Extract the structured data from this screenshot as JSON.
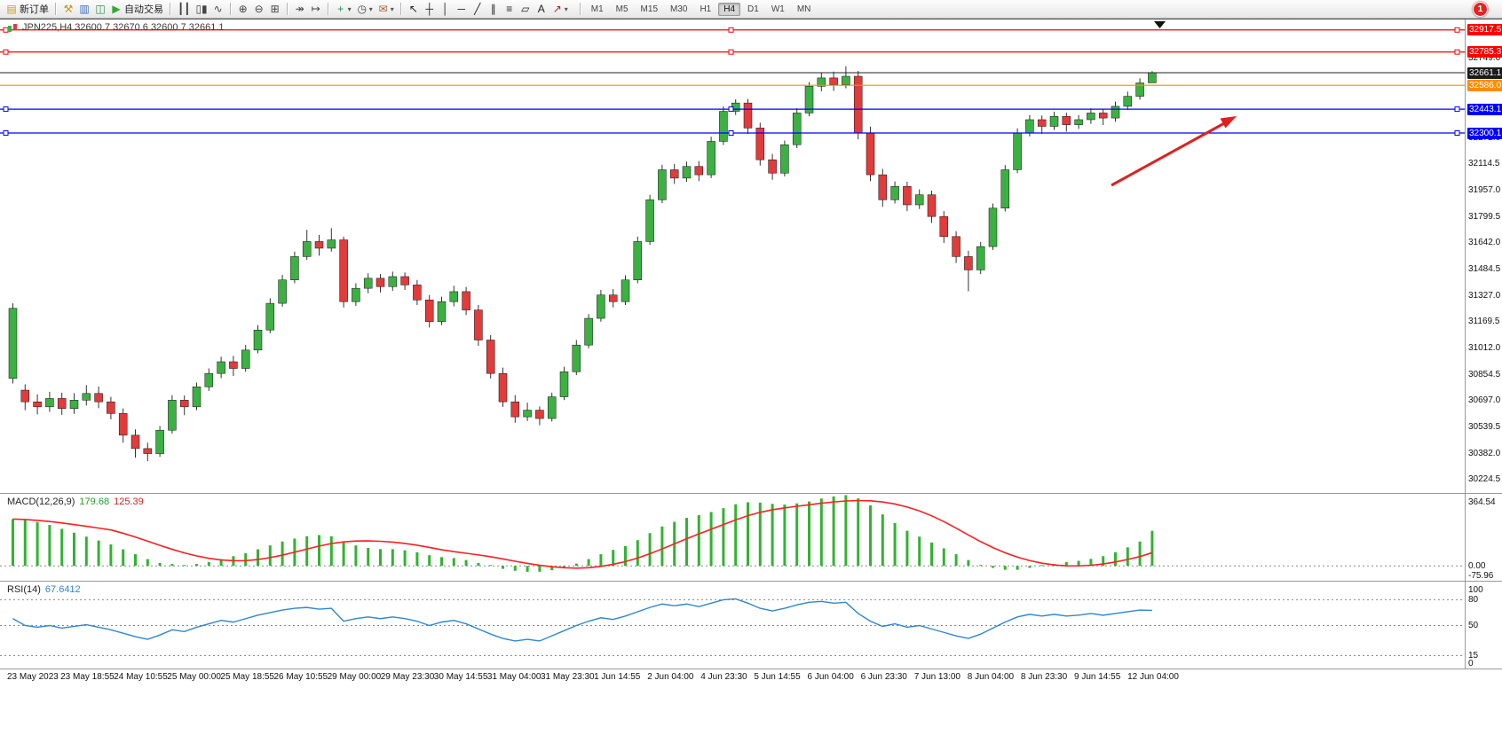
{
  "notification": {
    "count": "1"
  },
  "toolbar": {
    "buttons": {
      "new_order": "新订单",
      "auto_trading": "自动交易"
    },
    "timeframes": [
      "M1",
      "M5",
      "M15",
      "M30",
      "H1",
      "H4",
      "D1",
      "W1",
      "MN"
    ],
    "active_timeframe": "H4",
    "groups": [
      {
        "items": [
          {
            "name": "new-order-button",
            "glyph": "▤",
            "glyph_color": "#c89a20",
            "label": "新订单"
          }
        ]
      },
      {
        "items": [
          {
            "name": "tools-icon-button",
            "glyph": "⚒",
            "glyph_color": "#c8961e"
          },
          {
            "name": "market-watch-icon-button",
            "glyph": "▥",
            "glyph_color": "#3a6fc4"
          },
          {
            "name": "data-window-icon-button",
            "glyph": "◫",
            "glyph_color": "#2e8b57"
          },
          {
            "name": "auto-trading-button",
            "glyph": "▶",
            "glyph_color": "#2eaa2e",
            "label": "自动交易"
          }
        ]
      },
      {
        "items": [
          {
            "name": "bar-chart-icon-button",
            "glyph": "┃┃",
            "glyph_color": "#444444"
          },
          {
            "name": "candlestick-chart-icon-button",
            "glyph": "▯▮",
            "glyph_color": "#444444"
          },
          {
            "name": "line-chart-icon-button",
            "glyph": "∿",
            "glyph_color": "#444444"
          }
        ]
      },
      {
        "items": [
          {
            "name": "zoom-in-icon-button",
            "glyph": "⊕",
            "glyph_color": "#444444"
          },
          {
            "name": "zoom-out-icon-button",
            "glyph": "⊖",
            "glyph_color": "#444444"
          },
          {
            "name": "tile-windows-icon-button",
            "glyph": "⊞",
            "glyph_color": "#444444"
          }
        ]
      },
      {
        "items": [
          {
            "name": "auto-scroll-icon-button",
            "glyph": "↠",
            "glyph_color": "#444444"
          },
          {
            "name": "chart-shift-icon-button",
            "glyph": "↦",
            "glyph_color": "#444444"
          }
        ]
      },
      {
        "items": [
          {
            "name": "indicators-icon-button",
            "glyph": "+",
            "glyph_color": "#2e8b57",
            "caret": true
          },
          {
            "name": "periods-icon-button",
            "glyph": "◷",
            "glyph_color": "#444444",
            "caret": true
          },
          {
            "name": "templates-icon-button",
            "glyph": "✉",
            "glyph_color": "#b06030",
            "caret": true
          }
        ]
      },
      {
        "items": [
          {
            "name": "cursor-icon-button",
            "glyph": "↖",
            "glyph_color": "#222222"
          },
          {
            "name": "crosshair-icon-button",
            "glyph": "┼",
            "glyph_color": "#222222"
          },
          {
            "name": "vertical-line-icon-button",
            "glyph": "│",
            "glyph_color": "#222222"
          },
          {
            "name": "horizontal-line-icon-button",
            "glyph": "─",
            "glyph_color": "#222222"
          },
          {
            "name": "trendline-icon-button",
            "glyph": "╱",
            "glyph_color": "#222222"
          },
          {
            "name": "channel-icon-button",
            "glyph": "∥",
            "glyph_color": "#222222"
          },
          {
            "name": "fibonacci-icon-button",
            "glyph": "≡",
            "glyph_color": "#222222"
          },
          {
            "name": "shapes-icon-button",
            "glyph": "▱",
            "glyph_color": "#222222"
          },
          {
            "name": "text-icon-button",
            "glyph": "A",
            "glyph_color": "#222222"
          },
          {
            "name": "arrows-icon-button",
            "glyph": "↗",
            "glyph_color": "#b02020",
            "caret": true
          }
        ]
      }
    ]
  },
  "chart_data": [
    {
      "type": "candlestick",
      "title": "JPN225,H4 32600.7 32670.6 32600.7 32661.1",
      "symbol": "JPN225",
      "period": "H4",
      "ohlc_display": {
        "open": "32600.7",
        "high": "32670.6",
        "low": "32600.7",
        "close": "32661.1"
      },
      "grid": false,
      "ylim": [
        30144,
        32980
      ],
      "colors": {
        "up": "#3cb043",
        "down": "#e23b3b",
        "wick": "#333333"
      },
      "hlines": [
        {
          "price": 32917.5,
          "color": "#ff0000",
          "handles": true
        },
        {
          "price": 32785.3,
          "color": "#ff0000",
          "handles": true
        },
        {
          "price": 32661.1,
          "color": "#1b1b1b",
          "current": true
        },
        {
          "price": 32586.0,
          "color": "#ff8c00"
        },
        {
          "price": 32443.1,
          "color": "#0000ff",
          "handles": true
        },
        {
          "price": 32300.1,
          "color": "#0000ff",
          "handles": true
        }
      ],
      "y_axis_plain_labels": [
        32749.0,
        32272.0,
        32114.5,
        31957.0,
        31799.5,
        31642.0,
        31484.5,
        31327.0,
        31169.5,
        31012.0,
        30854.5,
        30697.0,
        30539.5,
        30382.0,
        30224.5
      ],
      "x_labels": [
        "23 May 2023",
        "23 May 18:55",
        "24 May 10:55",
        "25 May 00:00",
        "25 May 18:55",
        "26 May 10:55",
        "29 May 00:00",
        "29 May 23:30",
        "30 May 14:55",
        "31 May 04:00",
        "31 May 23:30",
        "1 Jun 14:55",
        "2 Jun 04:00",
        "4 Jun 23:30",
        "5 Jun 14:55",
        "6 Jun 04:00",
        "6 Jun 23:30",
        "7 Jun 13:00",
        "8 Jun 04:00",
        "8 Jun 23:30",
        "9 Jun 14:55",
        "12 Jun 04:00"
      ],
      "annotations": [
        {
          "type": "arrow",
          "color": "#e02020"
        },
        {
          "type": "triangle-marker",
          "color": "#111111"
        }
      ],
      "ohlc": [
        [
          30830,
          31280,
          30800,
          31250
        ],
        [
          30760,
          30795,
          30640,
          30690
        ],
        [
          30690,
          30735,
          30615,
          30660
        ],
        [
          30660,
          30750,
          30630,
          30710
        ],
        [
          30710,
          30745,
          30612,
          30650
        ],
        [
          30650,
          30742,
          30618,
          30700
        ],
        [
          30700,
          30790,
          30668,
          30740
        ],
        [
          30740,
          30782,
          30652,
          30690
        ],
        [
          30690,
          30720,
          30585,
          30620
        ],
        [
          30620,
          30650,
          30445,
          30490
        ],
        [
          30490,
          30525,
          30355,
          30410
        ],
        [
          30410,
          30445,
          30335,
          30380
        ],
        [
          30380,
          30545,
          30360,
          30520
        ],
        [
          30520,
          30730,
          30500,
          30700
        ],
        [
          30700,
          30728,
          30610,
          30660
        ],
        [
          30660,
          30805,
          30640,
          30780
        ],
        [
          30780,
          30890,
          30755,
          30860
        ],
        [
          30860,
          30960,
          30832,
          30930
        ],
        [
          30930,
          30965,
          30845,
          30890
        ],
        [
          30890,
          31030,
          30870,
          31000
        ],
        [
          31000,
          31150,
          30980,
          31120
        ],
        [
          31120,
          31310,
          31100,
          31280
        ],
        [
          31280,
          31450,
          31260,
          31420
        ],
        [
          31420,
          31590,
          31400,
          31560
        ],
        [
          31560,
          31720,
          31540,
          31650
        ],
        [
          31650,
          31690,
          31565,
          31610
        ],
        [
          31610,
          31730,
          31590,
          31660
        ],
        [
          31660,
          31680,
          31255,
          31290
        ],
        [
          31290,
          31400,
          31265,
          31370
        ],
        [
          31370,
          31460,
          31340,
          31430
        ],
        [
          31430,
          31455,
          31345,
          31380
        ],
        [
          31380,
          31470,
          31355,
          31440
        ],
        [
          31440,
          31465,
          31360,
          31390
        ],
        [
          31390,
          31420,
          31270,
          31300
        ],
        [
          31300,
          31330,
          31135,
          31170
        ],
        [
          31170,
          31320,
          31150,
          31290
        ],
        [
          31290,
          31385,
          31262,
          31350
        ],
        [
          31350,
          31378,
          31210,
          31240
        ],
        [
          31240,
          31270,
          31025,
          31060
        ],
        [
          31060,
          31090,
          30830,
          30860
        ],
        [
          30860,
          30895,
          30660,
          30690
        ],
        [
          30690,
          30730,
          30565,
          30600
        ],
        [
          30600,
          30685,
          30575,
          30640
        ],
        [
          30640,
          30662,
          30550,
          30590
        ],
        [
          30590,
          30745,
          30572,
          30720
        ],
        [
          30720,
          30900,
          30700,
          30870
        ],
        [
          30870,
          31060,
          30850,
          31030
        ],
        [
          31030,
          31215,
          31010,
          31190
        ],
        [
          31190,
          31360,
          31170,
          31330
        ],
        [
          31330,
          31365,
          31255,
          31290
        ],
        [
          31290,
          31448,
          31270,
          31420
        ],
        [
          31420,
          31680,
          31400,
          31650
        ],
        [
          31650,
          31930,
          31630,
          31900
        ],
        [
          31900,
          32110,
          31880,
          32080
        ],
        [
          32080,
          32115,
          31995,
          32030
        ],
        [
          32030,
          32128,
          32008,
          32100
        ],
        [
          32100,
          32132,
          32012,
          32050
        ],
        [
          32050,
          32278,
          32030,
          32250
        ],
        [
          32250,
          32460,
          32228,
          32430
        ],
        [
          32430,
          32502,
          32408,
          32480
        ],
        [
          32480,
          32505,
          32295,
          32330
        ],
        [
          32330,
          32362,
          32105,
          32140
        ],
        [
          32140,
          32175,
          32020,
          32060
        ],
        [
          32060,
          32255,
          32040,
          32230
        ],
        [
          32230,
          32448,
          32210,
          32420
        ],
        [
          32420,
          32605,
          32400,
          32580
        ],
        [
          32580,
          32662,
          32550,
          32630
        ],
        [
          32630,
          32668,
          32552,
          32590
        ],
        [
          32590,
          32700,
          32568,
          32640
        ],
        [
          32640,
          32672,
          32262,
          32300
        ],
        [
          32300,
          32338,
          32012,
          32050
        ],
        [
          32050,
          32085,
          31858,
          31900
        ],
        [
          31900,
          32010,
          31878,
          31980
        ],
        [
          31980,
          32008,
          31832,
          31870
        ],
        [
          31870,
          31962,
          31845,
          31930
        ],
        [
          31930,
          31955,
          31762,
          31800
        ],
        [
          31800,
          31832,
          31642,
          31680
        ],
        [
          31680,
          31712,
          31522,
          31560
        ],
        [
          31560,
          31595,
          31352,
          31480
        ],
        [
          31480,
          31648,
          31455,
          31620
        ],
        [
          31620,
          31878,
          31600,
          31850
        ],
        [
          31850,
          32108,
          31830,
          32080
        ],
        [
          32080,
          32328,
          32060,
          32300
        ],
        [
          32300,
          32408,
          32280,
          32380
        ],
        [
          32380,
          32405,
          32295,
          32340
        ],
        [
          32340,
          32428,
          32318,
          32400
        ],
        [
          32400,
          32422,
          32308,
          32350
        ],
        [
          32350,
          32408,
          32325,
          32380
        ],
        [
          32380,
          32448,
          32355,
          32420
        ],
        [
          32420,
          32445,
          32348,
          32390
        ],
        [
          32390,
          32488,
          32368,
          32460
        ],
        [
          32460,
          32548,
          32438,
          32520
        ],
        [
          32520,
          32628,
          32500,
          32600
        ],
        [
          32600.7,
          32670.6,
          32600.7,
          32661.1
        ]
      ]
    },
    {
      "type": "bar",
      "name": "MACD",
      "label": "MACD(12,26,9)",
      "value_labels": [
        "179.68",
        "125.39"
      ],
      "y_axis_labels": [
        "364.54",
        "0.00",
        "-75.96"
      ],
      "ylim": [
        -75.96,
        364.54
      ],
      "colors": {
        "histogram": "#32b332",
        "signal": "#ff2020"
      },
      "values": [
        240,
        235,
        225,
        210,
        190,
        170,
        150,
        130,
        110,
        85,
        60,
        35,
        15,
        10,
        5,
        10,
        20,
        35,
        50,
        65,
        85,
        105,
        125,
        140,
        152,
        158,
        152,
        125,
        105,
        92,
        86,
        86,
        80,
        70,
        55,
        45,
        40,
        30,
        15,
        0,
        -15,
        -25,
        -30,
        -30,
        -22,
        -8,
        12,
        35,
        60,
        82,
        102,
        132,
        168,
        202,
        226,
        246,
        260,
        276,
        296,
        316,
        326,
        324,
        318,
        314,
        320,
        330,
        345,
        356,
        362,
        346,
        310,
        264,
        220,
        180,
        150,
        120,
        90,
        60,
        30,
        5,
        -10,
        -20,
        -20,
        -10,
        0,
        10,
        20,
        26,
        36,
        50,
        70,
        95,
        125,
        179.68
      ]
    },
    {
      "type": "line",
      "name": "RSI",
      "label": "RSI(14)",
      "value_label": "67.6412",
      "y_axis_labels": [
        "100",
        "80",
        "50",
        "15",
        "0"
      ],
      "levels": [
        80,
        50,
        15
      ],
      "ylim": [
        0,
        100
      ],
      "colors": {
        "line": "#2e86d0"
      },
      "values": [
        58,
        50,
        48,
        50,
        47,
        49,
        51,
        48,
        45,
        41,
        37,
        34,
        39,
        45,
        43,
        48,
        52,
        56,
        54,
        58,
        62,
        65,
        68,
        70,
        71,
        69,
        70,
        55,
        58,
        60,
        58,
        60,
        58,
        55,
        50,
        54,
        56,
        52,
        46,
        40,
        35,
        32,
        34,
        32,
        38,
        44,
        50,
        55,
        59,
        57,
        61,
        66,
        71,
        75,
        73,
        75,
        72,
        76,
        80,
        81,
        76,
        70,
        67,
        70,
        74,
        77,
        78,
        76,
        77,
        64,
        55,
        49,
        52,
        48,
        50,
        46,
        42,
        38,
        35,
        40,
        47,
        54,
        60,
        63,
        61,
        63,
        61,
        62,
        64,
        62,
        64,
        66,
        68,
        67.64
      ]
    }
  ]
}
